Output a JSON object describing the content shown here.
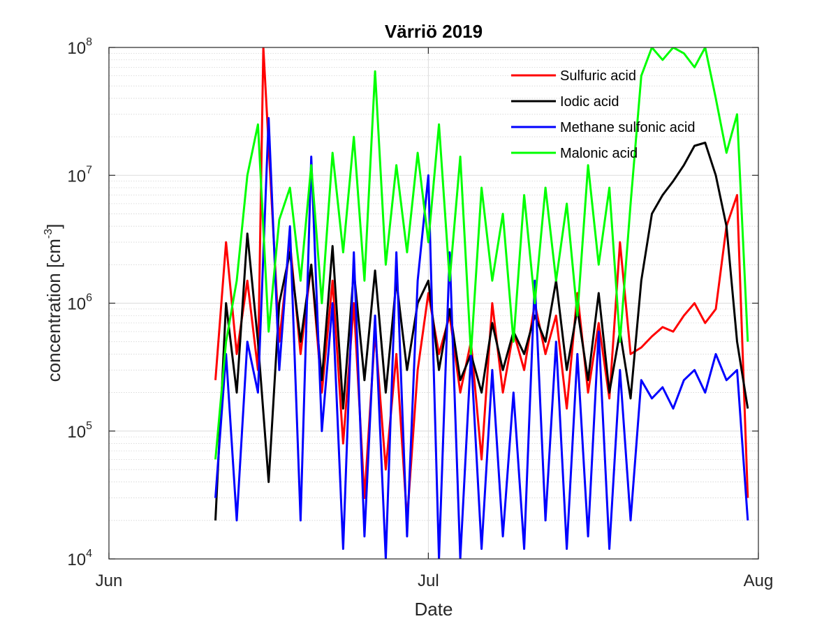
{
  "chart_data": {
    "type": "line",
    "title": "Värriö 2019",
    "xlabel": "Date",
    "ylabel": "concentration [cm^-3]",
    "ylabel_parts": {
      "base": "concentration [cm",
      "sup": "-3",
      "end": "]"
    },
    "xticks": [
      {
        "date": "2019-06-01",
        "label": "Jun"
      },
      {
        "date": "2019-07-01",
        "label": "Jul"
      },
      {
        "date": "2019-08-01",
        "label": "Aug"
      }
    ],
    "yscale": "log",
    "ylim": [
      10000,
      100000000
    ],
    "yticks": [
      {
        "value": 10000,
        "base": "10",
        "exp": "4"
      },
      {
        "value": 100000,
        "base": "10",
        "exp": "5"
      },
      {
        "value": 1000000,
        "base": "10",
        "exp": "6"
      },
      {
        "value": 10000000,
        "base": "10",
        "exp": "7"
      },
      {
        "value": 100000000,
        "base": "10",
        "exp": "8"
      }
    ],
    "xlim": [
      "2019-06-01",
      "2019-08-01"
    ],
    "grid": true,
    "minor_grid": true,
    "legend_position": "top-right",
    "series": [
      {
        "name": "Sulfuric acid",
        "color": "#ff0000",
        "points": [
          [
            "2019-06-11",
            250000
          ],
          [
            "2019-06-12",
            3000000
          ],
          [
            "2019-06-13",
            400000
          ],
          [
            "2019-06-14",
            1500000
          ],
          [
            "2019-06-15",
            300000
          ],
          [
            "2019-06-15T12",
            100000000
          ],
          [
            "2019-06-17",
            500000
          ],
          [
            "2019-06-18",
            3000000
          ],
          [
            "2019-06-19",
            400000
          ],
          [
            "2019-06-20",
            2000000
          ],
          [
            "2019-06-21",
            200000
          ],
          [
            "2019-06-22",
            1500000
          ],
          [
            "2019-06-23",
            80000
          ],
          [
            "2019-06-24",
            1000000
          ],
          [
            "2019-06-25",
            30000
          ],
          [
            "2019-06-26",
            600000
          ],
          [
            "2019-06-27",
            50000
          ],
          [
            "2019-06-28",
            400000
          ],
          [
            "2019-06-29",
            20000
          ],
          [
            "2019-06-30",
            300000
          ],
          [
            "2019-07-01",
            1200000
          ],
          [
            "2019-07-02",
            400000
          ],
          [
            "2019-07-03",
            800000
          ],
          [
            "2019-07-04",
            200000
          ],
          [
            "2019-07-05",
            500000
          ],
          [
            "2019-07-06",
            60000
          ],
          [
            "2019-07-07",
            1000000
          ],
          [
            "2019-07-08",
            200000
          ],
          [
            "2019-07-09",
            600000
          ],
          [
            "2019-07-10",
            300000
          ],
          [
            "2019-07-11",
            1000000
          ],
          [
            "2019-07-12",
            400000
          ],
          [
            "2019-07-13",
            800000
          ],
          [
            "2019-07-14",
            150000
          ],
          [
            "2019-07-15",
            1200000
          ],
          [
            "2019-07-16",
            200000
          ],
          [
            "2019-07-17",
            700000
          ],
          [
            "2019-07-18",
            180000
          ],
          [
            "2019-07-19",
            3000000
          ],
          [
            "2019-07-20",
            400000
          ],
          [
            "2019-07-21",
            450000
          ],
          [
            "2019-07-22",
            550000
          ],
          [
            "2019-07-23",
            650000
          ],
          [
            "2019-07-24",
            600000
          ],
          [
            "2019-07-25",
            800000
          ],
          [
            "2019-07-26",
            1000000
          ],
          [
            "2019-07-27",
            700000
          ],
          [
            "2019-07-28",
            900000
          ],
          [
            "2019-07-29",
            4000000
          ],
          [
            "2019-07-30",
            7000000
          ],
          [
            "2019-07-31",
            30000
          ]
        ]
      },
      {
        "name": "Iodic acid",
        "color": "#000000",
        "points": [
          [
            "2019-06-11",
            20000
          ],
          [
            "2019-06-12",
            1000000
          ],
          [
            "2019-06-13",
            200000
          ],
          [
            "2019-06-14",
            3500000
          ],
          [
            "2019-06-15",
            500000
          ],
          [
            "2019-06-16",
            40000
          ],
          [
            "2019-06-17",
            1000000
          ],
          [
            "2019-06-18",
            2500000
          ],
          [
            "2019-06-19",
            500000
          ],
          [
            "2019-06-20",
            2000000
          ],
          [
            "2019-06-21",
            250000
          ],
          [
            "2019-06-22",
            2800000
          ],
          [
            "2019-06-23",
            150000
          ],
          [
            "2019-06-24",
            1800000
          ],
          [
            "2019-06-25",
            250000
          ],
          [
            "2019-06-26",
            1800000
          ],
          [
            "2019-06-27",
            200000
          ],
          [
            "2019-06-28",
            1500000
          ],
          [
            "2019-06-29",
            300000
          ],
          [
            "2019-06-30",
            1000000
          ],
          [
            "2019-07-01",
            1500000
          ],
          [
            "2019-07-02",
            300000
          ],
          [
            "2019-07-03",
            900000
          ],
          [
            "2019-07-04",
            250000
          ],
          [
            "2019-07-05",
            400000
          ],
          [
            "2019-07-06",
            200000
          ],
          [
            "2019-07-07",
            700000
          ],
          [
            "2019-07-08",
            300000
          ],
          [
            "2019-07-09",
            600000
          ],
          [
            "2019-07-10",
            400000
          ],
          [
            "2019-07-11",
            800000
          ],
          [
            "2019-07-12",
            500000
          ],
          [
            "2019-07-13",
            1500000
          ],
          [
            "2019-07-14",
            300000
          ],
          [
            "2019-07-15",
            900000
          ],
          [
            "2019-07-16",
            250000
          ],
          [
            "2019-07-17",
            1200000
          ],
          [
            "2019-07-18",
            200000
          ],
          [
            "2019-07-19",
            600000
          ],
          [
            "2019-07-20",
            180000
          ],
          [
            "2019-07-21",
            1500000
          ],
          [
            "2019-07-22",
            5000000
          ],
          [
            "2019-07-23",
            7000000
          ],
          [
            "2019-07-24",
            9000000
          ],
          [
            "2019-07-25",
            12000000
          ],
          [
            "2019-07-26",
            17000000
          ],
          [
            "2019-07-27",
            18000000
          ],
          [
            "2019-07-28",
            10000000
          ],
          [
            "2019-07-29",
            4000000
          ],
          [
            "2019-07-30",
            500000
          ],
          [
            "2019-07-31",
            150000
          ]
        ]
      },
      {
        "name": "Methane sulfonic acid",
        "color": "#0000ff",
        "points": [
          [
            "2019-06-11",
            30000
          ],
          [
            "2019-06-12",
            400000
          ],
          [
            "2019-06-13",
            20000
          ],
          [
            "2019-06-14",
            500000
          ],
          [
            "2019-06-15",
            200000
          ],
          [
            "2019-06-16",
            28000000
          ],
          [
            "2019-06-17",
            300000
          ],
          [
            "2019-06-18",
            4000000
          ],
          [
            "2019-06-19",
            20000
          ],
          [
            "2019-06-20",
            14000000
          ],
          [
            "2019-06-21",
            100000
          ],
          [
            "2019-06-22",
            1000000
          ],
          [
            "2019-06-23",
            12000
          ],
          [
            "2019-06-24",
            2500000
          ],
          [
            "2019-06-25",
            15000
          ],
          [
            "2019-06-26",
            800000
          ],
          [
            "2019-06-27",
            10000
          ],
          [
            "2019-06-28",
            2500000
          ],
          [
            "2019-06-29",
            15000
          ],
          [
            "2019-06-30",
            1500000
          ],
          [
            "2019-07-01",
            10000000
          ],
          [
            "2019-07-02",
            10000
          ],
          [
            "2019-07-03",
            2500000
          ],
          [
            "2019-07-04",
            10000
          ],
          [
            "2019-07-05",
            400000
          ],
          [
            "2019-07-06",
            12000
          ],
          [
            "2019-07-07",
            300000
          ],
          [
            "2019-07-08",
            15000
          ],
          [
            "2019-07-09",
            200000
          ],
          [
            "2019-07-10",
            12000
          ],
          [
            "2019-07-11",
            1500000
          ],
          [
            "2019-07-12",
            20000
          ],
          [
            "2019-07-13",
            500000
          ],
          [
            "2019-07-14",
            12000
          ],
          [
            "2019-07-15",
            400000
          ],
          [
            "2019-07-16",
            15000
          ],
          [
            "2019-07-17",
            600000
          ],
          [
            "2019-07-18",
            12000
          ],
          [
            "2019-07-19",
            300000
          ],
          [
            "2019-07-20",
            20000
          ],
          [
            "2019-07-21",
            250000
          ],
          [
            "2019-07-22",
            180000
          ],
          [
            "2019-07-23",
            220000
          ],
          [
            "2019-07-24",
            150000
          ],
          [
            "2019-07-25",
            250000
          ],
          [
            "2019-07-26",
            300000
          ],
          [
            "2019-07-27",
            200000
          ],
          [
            "2019-07-28",
            400000
          ],
          [
            "2019-07-29",
            250000
          ],
          [
            "2019-07-30",
            300000
          ],
          [
            "2019-07-31",
            20000
          ]
        ]
      },
      {
        "name": "Malonic acid",
        "color": "#00ff00",
        "points": [
          [
            "2019-06-11",
            60000
          ],
          [
            "2019-06-12",
            500000
          ],
          [
            "2019-06-13",
            1500000
          ],
          [
            "2019-06-14",
            10000000
          ],
          [
            "2019-06-15",
            25000000
          ],
          [
            "2019-06-16",
            600000
          ],
          [
            "2019-06-17",
            4500000
          ],
          [
            "2019-06-18",
            8000000
          ],
          [
            "2019-06-19",
            1500000
          ],
          [
            "2019-06-20",
            12000000
          ],
          [
            "2019-06-21",
            1000000
          ],
          [
            "2019-06-22",
            15000000
          ],
          [
            "2019-06-23",
            2500000
          ],
          [
            "2019-06-24",
            20000000
          ],
          [
            "2019-06-25",
            1500000
          ],
          [
            "2019-06-26",
            65000000
          ],
          [
            "2019-06-27",
            2000000
          ],
          [
            "2019-06-28",
            12000000
          ],
          [
            "2019-06-29",
            2500000
          ],
          [
            "2019-06-30",
            15000000
          ],
          [
            "2019-07-01",
            3000000
          ],
          [
            "2019-07-02",
            25000000
          ],
          [
            "2019-07-03",
            1500000
          ],
          [
            "2019-07-04",
            14000000
          ],
          [
            "2019-07-05",
            400000
          ],
          [
            "2019-07-06",
            8000000
          ],
          [
            "2019-07-07",
            1500000
          ],
          [
            "2019-07-08",
            5000000
          ],
          [
            "2019-07-09",
            500000
          ],
          [
            "2019-07-10",
            7000000
          ],
          [
            "2019-07-11",
            1000000
          ],
          [
            "2019-07-12",
            8000000
          ],
          [
            "2019-07-13",
            1500000
          ],
          [
            "2019-07-14",
            6000000
          ],
          [
            "2019-07-15",
            800000
          ],
          [
            "2019-07-16",
            12000000
          ],
          [
            "2019-07-17",
            2000000
          ],
          [
            "2019-07-18",
            8000000
          ],
          [
            "2019-07-19",
            500000
          ],
          [
            "2019-07-20",
            6000000
          ],
          [
            "2019-07-21",
            60000000
          ],
          [
            "2019-07-22",
            100000000
          ],
          [
            "2019-07-23",
            80000000
          ],
          [
            "2019-07-24",
            100000000
          ],
          [
            "2019-07-25",
            90000000
          ],
          [
            "2019-07-26",
            70000000
          ],
          [
            "2019-07-27",
            100000000
          ],
          [
            "2019-07-28",
            40000000
          ],
          [
            "2019-07-29",
            15000000
          ],
          [
            "2019-07-30",
            30000000
          ],
          [
            "2019-07-31",
            500000
          ]
        ]
      }
    ]
  }
}
